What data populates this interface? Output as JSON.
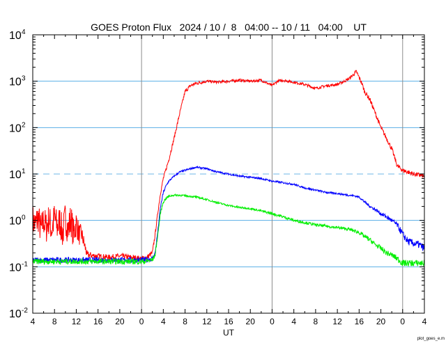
{
  "chart_data": {
    "type": "line",
    "title": "GOES Proton Flux   2024 / 10 /  8   04:00 -- 10 / 11   04:00    UT",
    "xlabel": "UT",
    "ylabel": "",
    "credit": "plot_goes_e.m",
    "y_scale": "log",
    "ylim": [
      0.01,
      10000
    ],
    "xlim": [
      4,
      76
    ],
    "x_unit": "hours UT from 2024-10-08 00:00",
    "y_ticks": [
      {
        "base": "10",
        "exp": "-2",
        "value": 0.01
      },
      {
        "base": "10",
        "exp": "-1",
        "value": 0.1
      },
      {
        "base": "10",
        "exp": "0",
        "value": 1
      },
      {
        "base": "10",
        "exp": "1",
        "value": 10
      },
      {
        "base": "10",
        "exp": "2",
        "value": 100
      },
      {
        "base": "10",
        "exp": "3",
        "value": 1000
      },
      {
        "base": "10",
        "exp": "4",
        "value": 10000
      }
    ],
    "x_ticks": [
      {
        "label": "4",
        "x": 4
      },
      {
        "label": "8",
        "x": 8
      },
      {
        "label": "12",
        "x": 12
      },
      {
        "label": "16",
        "x": 16
      },
      {
        "label": "20",
        "x": 20
      },
      {
        "label": "0",
        "x": 24
      },
      {
        "label": "4",
        "x": 28
      },
      {
        "label": "8",
        "x": 32
      },
      {
        "label": "12",
        "x": 36
      },
      {
        "label": "16",
        "x": 40
      },
      {
        "label": "20",
        "x": 44
      },
      {
        "label": "0",
        "x": 48
      },
      {
        "label": "4",
        "x": 52
      },
      {
        "label": "8",
        "x": 56
      },
      {
        "label": "12",
        "x": 60
      },
      {
        "label": "16",
        "x": 64
      },
      {
        "label": "20",
        "x": 68
      },
      {
        "label": "0",
        "x": 72
      },
      {
        "label": "4",
        "x": 76
      }
    ],
    "day_boundaries": [
      24,
      48,
      72
    ],
    "horizontal_lines": [
      0.1,
      1,
      100,
      1000
    ],
    "threshold_line": 10,
    "colors": {
      "grid": "#5aaee6",
      "threshold": "#9ecfef",
      "day_line": "#8c8c8c",
      "axis": "#000000"
    },
    "series": [
      {
        "color": "#ff0000",
        "x": [
          4,
          4.5,
          5,
          5.5,
          6,
          6.5,
          7,
          7.5,
          8,
          8.5,
          9,
          9.5,
          10,
          10.5,
          11,
          11.5,
          12,
          12.5,
          13,
          14,
          16,
          18,
          20,
          22,
          24,
          25,
          26,
          26.5,
          27,
          27.5,
          28,
          29,
          30,
          31,
          32,
          33,
          34,
          35,
          36,
          38,
          40,
          42,
          44,
          46,
          48,
          49,
          50,
          52,
          54,
          56,
          58,
          60,
          62,
          63,
          63.5,
          64,
          64.5,
          65,
          66,
          67,
          68,
          69,
          70,
          71,
          72,
          73,
          74,
          75,
          76
        ],
        "y": [
          1.0,
          0.8,
          1.2,
          0.6,
          1.0,
          0.7,
          1.1,
          0.6,
          1.2,
          0.7,
          1.0,
          0.5,
          1.2,
          0.6,
          1.1,
          0.5,
          0.9,
          0.5,
          0.5,
          0.18,
          0.17,
          0.16,
          0.17,
          0.16,
          0.15,
          0.16,
          0.2,
          0.5,
          1.5,
          4.0,
          8.0,
          20,
          60,
          200,
          600,
          800,
          900,
          950,
          1000,
          950,
          1000,
          1050,
          1000,
          1050,
          800,
          1000,
          1050,
          950,
          850,
          700,
          800,
          850,
          1100,
          1400,
          1600,
          1200,
          900,
          600,
          400,
          200,
          100,
          60,
          35,
          15,
          12,
          11,
          10,
          9.5,
          9
        ],
        "noise": [
          0.35,
          0.35,
          0.35,
          0.35,
          0.35,
          0.35,
          0.35,
          0.35,
          0.35,
          0.35,
          0.35,
          0.35,
          0.35,
          0.35,
          0.35,
          0.35,
          0.3,
          0.25,
          0.2,
          0.08,
          0.06,
          0.06,
          0.06,
          0.06,
          0.06,
          0.06,
          0.06,
          0.04,
          0.04,
          0.04,
          0.04,
          0.04,
          0.04,
          0.04,
          0.04,
          0.04,
          0.04,
          0.04,
          0.03,
          0.03,
          0.03,
          0.03,
          0.03,
          0.03,
          0.03,
          0.03,
          0.03,
          0.03,
          0.03,
          0.03,
          0.03,
          0.03,
          0.03,
          0.04,
          0.05,
          0.05,
          0.05,
          0.05,
          0.05,
          0.05,
          0.05,
          0.05,
          0.05,
          0.05,
          0.05,
          0.05,
          0.05,
          0.05,
          0.05
        ]
      },
      {
        "color": "#0000ff",
        "x": [
          4,
          8,
          12,
          16,
          20,
          23,
          24.5,
          26,
          26.5,
          27,
          27.5,
          28,
          28.5,
          29,
          30,
          31,
          32,
          33,
          34,
          35,
          36,
          38,
          40,
          42,
          44,
          46,
          48,
          50,
          52,
          54,
          56,
          58,
          60,
          62,
          63,
          64,
          65,
          66,
          67,
          68,
          69,
          70,
          71,
          72,
          73,
          74,
          75,
          76
        ],
        "y": [
          0.14,
          0.14,
          0.14,
          0.14,
          0.14,
          0.14,
          0.14,
          0.15,
          0.2,
          0.6,
          2.0,
          4.0,
          5.5,
          7.0,
          9.0,
          11,
          12,
          13,
          14,
          13.5,
          13,
          11,
          10,
          9,
          8.5,
          8,
          7,
          6.5,
          6,
          5,
          4.5,
          4,
          3.8,
          3.5,
          3.4,
          3.2,
          2.5,
          2.0,
          1.7,
          1.4,
          1.2,
          1.0,
          0.8,
          0.5,
          0.35,
          0.32,
          0.3,
          0.25
        ],
        "noise": [
          0.06,
          0.06,
          0.06,
          0.06,
          0.06,
          0.06,
          0.06,
          0.06,
          0.04,
          0.03,
          0.03,
          0.03,
          0.03,
          0.02,
          0.02,
          0.02,
          0.02,
          0.02,
          0.02,
          0.02,
          0.02,
          0.02,
          0.02,
          0.02,
          0.02,
          0.02,
          0.02,
          0.02,
          0.02,
          0.02,
          0.02,
          0.02,
          0.02,
          0.02,
          0.02,
          0.02,
          0.03,
          0.03,
          0.03,
          0.04,
          0.05,
          0.05,
          0.06,
          0.08,
          0.08,
          0.08,
          0.08,
          0.08
        ]
      },
      {
        "color": "#00ee00",
        "x": [
          4,
          8,
          12,
          16,
          20,
          23,
          24.5,
          26,
          26.5,
          27,
          27.5,
          28,
          28.5,
          29,
          30,
          31,
          32,
          33,
          34,
          35,
          36,
          38,
          40,
          42,
          44,
          46,
          48,
          50,
          52,
          54,
          56,
          58,
          60,
          62,
          63,
          64,
          65,
          66,
          67,
          68,
          69,
          70,
          71,
          72,
          73,
          74,
          75,
          76
        ],
        "y": [
          0.13,
          0.13,
          0.13,
          0.13,
          0.13,
          0.13,
          0.13,
          0.14,
          0.18,
          0.5,
          1.5,
          2.5,
          3.0,
          3.3,
          3.5,
          3.5,
          3.4,
          3.3,
          3.2,
          3.0,
          2.8,
          2.4,
          2.1,
          1.9,
          1.8,
          1.6,
          1.4,
          1.2,
          1.0,
          0.9,
          0.8,
          0.75,
          0.7,
          0.65,
          0.6,
          0.55,
          0.45,
          0.38,
          0.3,
          0.25,
          0.2,
          0.18,
          0.15,
          0.12,
          0.12,
          0.12,
          0.12,
          0.12
        ],
        "noise": [
          0.06,
          0.06,
          0.06,
          0.06,
          0.06,
          0.06,
          0.06,
          0.06,
          0.04,
          0.03,
          0.03,
          0.03,
          0.03,
          0.02,
          0.02,
          0.02,
          0.02,
          0.02,
          0.02,
          0.02,
          0.02,
          0.02,
          0.02,
          0.02,
          0.02,
          0.02,
          0.03,
          0.03,
          0.03,
          0.03,
          0.03,
          0.03,
          0.03,
          0.03,
          0.04,
          0.04,
          0.05,
          0.05,
          0.05,
          0.06,
          0.06,
          0.06,
          0.07,
          0.07,
          0.07,
          0.07,
          0.07,
          0.07
        ]
      }
    ]
  }
}
